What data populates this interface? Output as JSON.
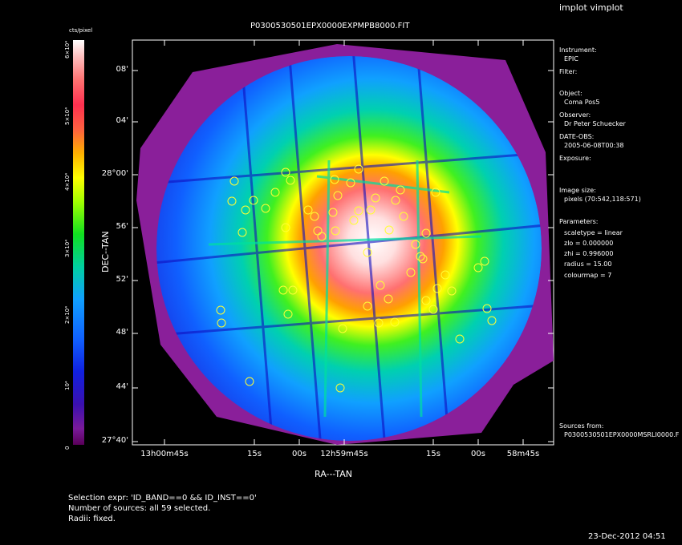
{
  "app": {
    "title": "implot vimplot"
  },
  "plot": {
    "title": "P0300530501EPX0000EXPMPB8000.FIT",
    "ylabel": "DEC--TAN",
    "xlabel": "RA---TAN",
    "y_ticks": [
      "08'",
      "04'",
      "28°00'",
      "56'",
      "52'",
      "48'",
      "44'",
      "27°40'"
    ],
    "x_ticks": [
      "13h00m45s",
      "15s",
      "00s",
      "12h59m45s",
      "15s",
      "00s",
      "58m45s"
    ]
  },
  "colorbar": {
    "title": "cts/pixel",
    "labels": [
      "0",
      "10⁴",
      "2×10⁴",
      "3×10⁴",
      "4×10⁴",
      "5×10⁴",
      "6×10⁴"
    ]
  },
  "info_panel": {
    "instrument_label": "Instrument:",
    "instrument": "EPIC",
    "filter_label": "Filter:",
    "object_label": "Object:",
    "object": "Coma Pos5",
    "observer_label": "Observer:",
    "observer": "Dr Peter Schuecker",
    "date_label": "DATE-OBS:",
    "date": "2005-06-08T00:38",
    "exposure_label": "Exposure:",
    "image_size_label": "Image size:",
    "image_size": "pixels (70:542,118:571)",
    "parameters_label": "Parameters:",
    "params": [
      "scaletype = linear",
      "zlo = 0.000000",
      "zhi = 0.996000",
      "radius = 15.00",
      "colourmap = 7"
    ],
    "sources_label": "Sources from:",
    "sources_file": "P0300530501EPX0000MSRLI0000.F"
  },
  "bottom_info": {
    "selection": "Selection expr: 'ID_BAND==0 && ID_INST==0'",
    "count": "Number of sources: all 59 selected.",
    "radii": "Radii: fixed."
  },
  "timestamp": "23-Dec-2012 04:51",
  "sources": [
    [
      292,
      226
    ],
    [
      289,
      251
    ],
    [
      306,
      262
    ],
    [
      316,
      250
    ],
    [
      331,
      260
    ],
    [
      343,
      240
    ],
    [
      356,
      215
    ],
    [
      362,
      225
    ],
    [
      384,
      262
    ],
    [
      392,
      270
    ],
    [
      396,
      288
    ],
    [
      401,
      295
    ],
    [
      417,
      224
    ],
    [
      421,
      244
    ],
    [
      437,
      228
    ],
    [
      447,
      211
    ],
    [
      447,
      263
    ],
    [
      415,
      265
    ],
    [
      462,
      262
    ],
    [
      479,
      226
    ],
    [
      468,
      247
    ],
    [
      493,
      250
    ],
    [
      503,
      270
    ],
    [
      485,
      287
    ],
    [
      518,
      305
    ],
    [
      524,
      320
    ],
    [
      531,
      291
    ],
    [
      543,
      240
    ],
    [
      527,
      323
    ],
    [
      512,
      340
    ],
    [
      545,
      360
    ],
    [
      563,
      363
    ],
    [
      531,
      375
    ],
    [
      540,
      386
    ],
    [
      458,
      382
    ],
    [
      484,
      373
    ],
    [
      472,
      403
    ],
    [
      492,
      402
    ],
    [
      427,
      410
    ],
    [
      365,
      362
    ],
    [
      353,
      362
    ],
    [
      359,
      392
    ],
    [
      458,
      315
    ],
    [
      474,
      356
    ],
    [
      302,
      290
    ],
    [
      356,
      284
    ],
    [
      275,
      387
    ],
    [
      276,
      403
    ],
    [
      311,
      476
    ],
    [
      424,
      484
    ],
    [
      573,
      423
    ],
    [
      604,
      326
    ],
    [
      596,
      334
    ],
    [
      607,
      385
    ],
    [
      613,
      400
    ],
    [
      555,
      343
    ],
    [
      418,
      288
    ],
    [
      441,
      275
    ],
    [
      499,
      237
    ]
  ]
}
